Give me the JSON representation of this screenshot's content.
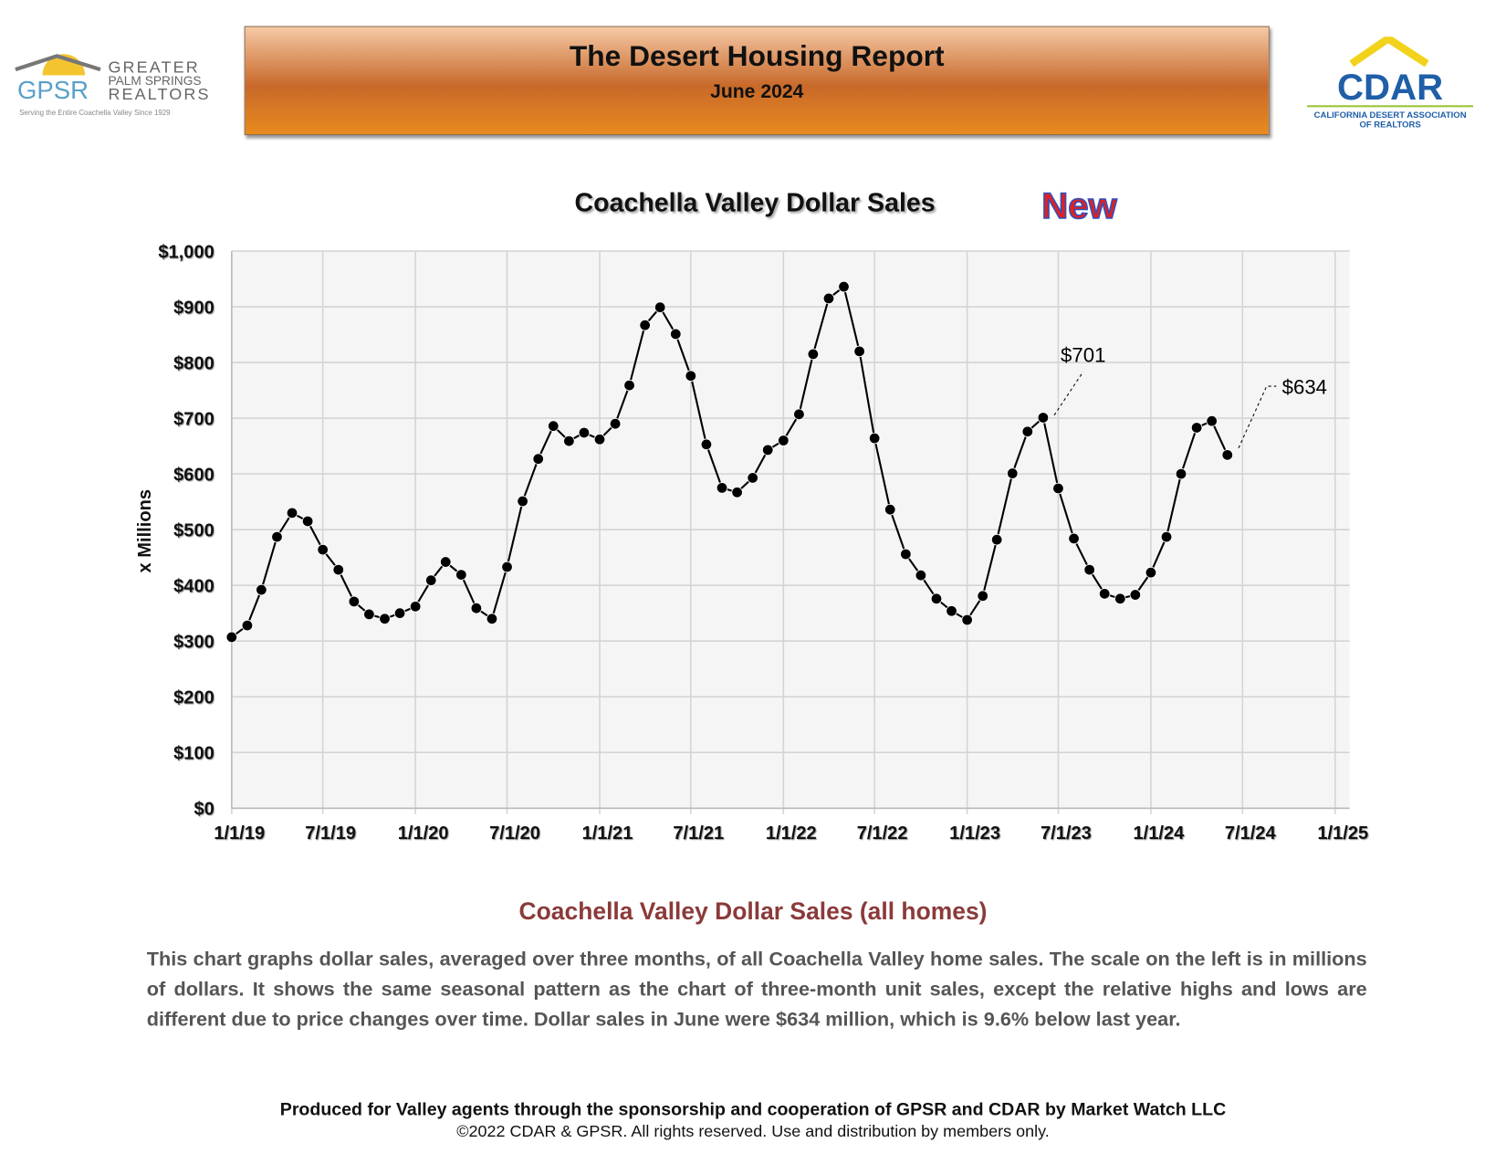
{
  "header": {
    "title": "The Desert Housing Report",
    "subtitle": "June 2024"
  },
  "logos": {
    "gpsr": {
      "abbr": "GPSR",
      "line1": "GREATER",
      "line2": "PALM SPRINGS",
      "line3": "REALTORS",
      "tagline": "Serving the Entire Coachella Valley Since 1929"
    },
    "cdar": {
      "abbr": "CDAR",
      "line1": "CALIFORNIA DESERT ASSOCIATION",
      "line2": "OF REALTORS"
    }
  },
  "badge": "New",
  "chart_data": {
    "type": "line",
    "title": "Coachella Valley Dollar Sales",
    "y_label": "x Millions",
    "color": "#000000",
    "grid": true,
    "x": [
      "1/1/19",
      "2/1/19",
      "3/1/19",
      "4/1/19",
      "5/1/19",
      "6/1/19",
      "7/1/19",
      "8/1/19",
      "9/1/19",
      "10/1/19",
      "11/1/19",
      "12/1/19",
      "1/1/20",
      "2/1/20",
      "3/1/20",
      "4/1/20",
      "5/1/20",
      "6/1/20",
      "7/1/20",
      "8/1/20",
      "9/1/20",
      "10/1/20",
      "11/1/20",
      "12/1/20",
      "1/1/21",
      "2/1/21",
      "3/1/21",
      "4/1/21",
      "5/1/21",
      "6/1/21",
      "7/1/21",
      "8/1/21",
      "9/1/21",
      "10/1/21",
      "11/1/21",
      "12/1/21",
      "1/1/22",
      "2/1/22",
      "3/1/22",
      "4/1/22",
      "5/1/22",
      "6/1/22",
      "7/1/22",
      "8/1/22",
      "9/1/22",
      "10/1/22",
      "11/1/22",
      "12/1/22",
      "1/1/23",
      "2/1/23",
      "3/1/23",
      "4/1/23",
      "5/1/23",
      "6/1/23",
      "7/1/23",
      "8/1/23",
      "9/1/23",
      "10/1/23",
      "11/1/23",
      "12/1/23",
      "1/1/24",
      "2/1/24",
      "3/1/24",
      "4/1/24",
      "5/1/24",
      "6/1/24"
    ],
    "values": [
      307,
      328,
      392,
      487,
      530,
      515,
      464,
      428,
      371,
      348,
      340,
      350,
      362,
      409,
      442,
      419,
      359,
      340,
      433,
      551,
      627,
      686,
      659,
      674,
      662,
      690,
      759,
      867,
      899,
      851,
      776,
      653,
      575,
      567,
      593,
      643,
      660,
      707,
      815,
      915,
      936,
      820,
      664,
      536,
      456,
      418,
      376,
      354,
      338,
      381,
      482,
      601,
      676,
      701,
      574,
      484,
      428,
      385,
      376,
      383,
      423,
      487,
      600,
      683,
      695,
      634
    ],
    "xlim": [
      "1/1/19",
      "1/1/25"
    ],
    "xticks": [
      "1/1/19",
      "7/1/19",
      "1/1/20",
      "7/1/20",
      "1/1/21",
      "7/1/21",
      "1/1/22",
      "7/1/22",
      "1/1/23",
      "7/1/23",
      "1/1/24",
      "7/1/24",
      "1/1/25"
    ],
    "ylim": [
      0,
      1000
    ],
    "yticks": [
      {
        "value": 0,
        "label": "$0"
      },
      {
        "value": 100,
        "label": "$100"
      },
      {
        "value": 200,
        "label": "$200"
      },
      {
        "value": 300,
        "label": "$300"
      },
      {
        "value": 400,
        "label": "$400"
      },
      {
        "value": 500,
        "label": "$500"
      },
      {
        "value": 600,
        "label": "$600"
      },
      {
        "value": 700,
        "label": "$700"
      },
      {
        "value": 800,
        "label": "$800"
      },
      {
        "value": 900,
        "label": "$900"
      },
      {
        "value": 1000,
        "label": "$1,000"
      }
    ],
    "annotations": [
      "$701",
      "$634"
    ]
  },
  "section": {
    "heading": "Coachella Valley Dollar Sales (all homes)",
    "text": "This chart graphs dollar sales, averaged over three months, of all Coachella Valley home sales. The scale on the left is in millions of dollars. It shows the same seasonal pattern as the chart of three-month unit sales, except the relative highs and lows are different due to price changes over time. Dollar sales in June were $634 million, which is 9.6% below last year."
  },
  "footer": {
    "line1": "Produced for Valley agents through the sponsorship and cooperation of GPSR and CDAR by Market Watch LLC",
    "line2": "©2022 CDAR & GPSR.  All rights reserved.  Use and distribution by members only."
  }
}
